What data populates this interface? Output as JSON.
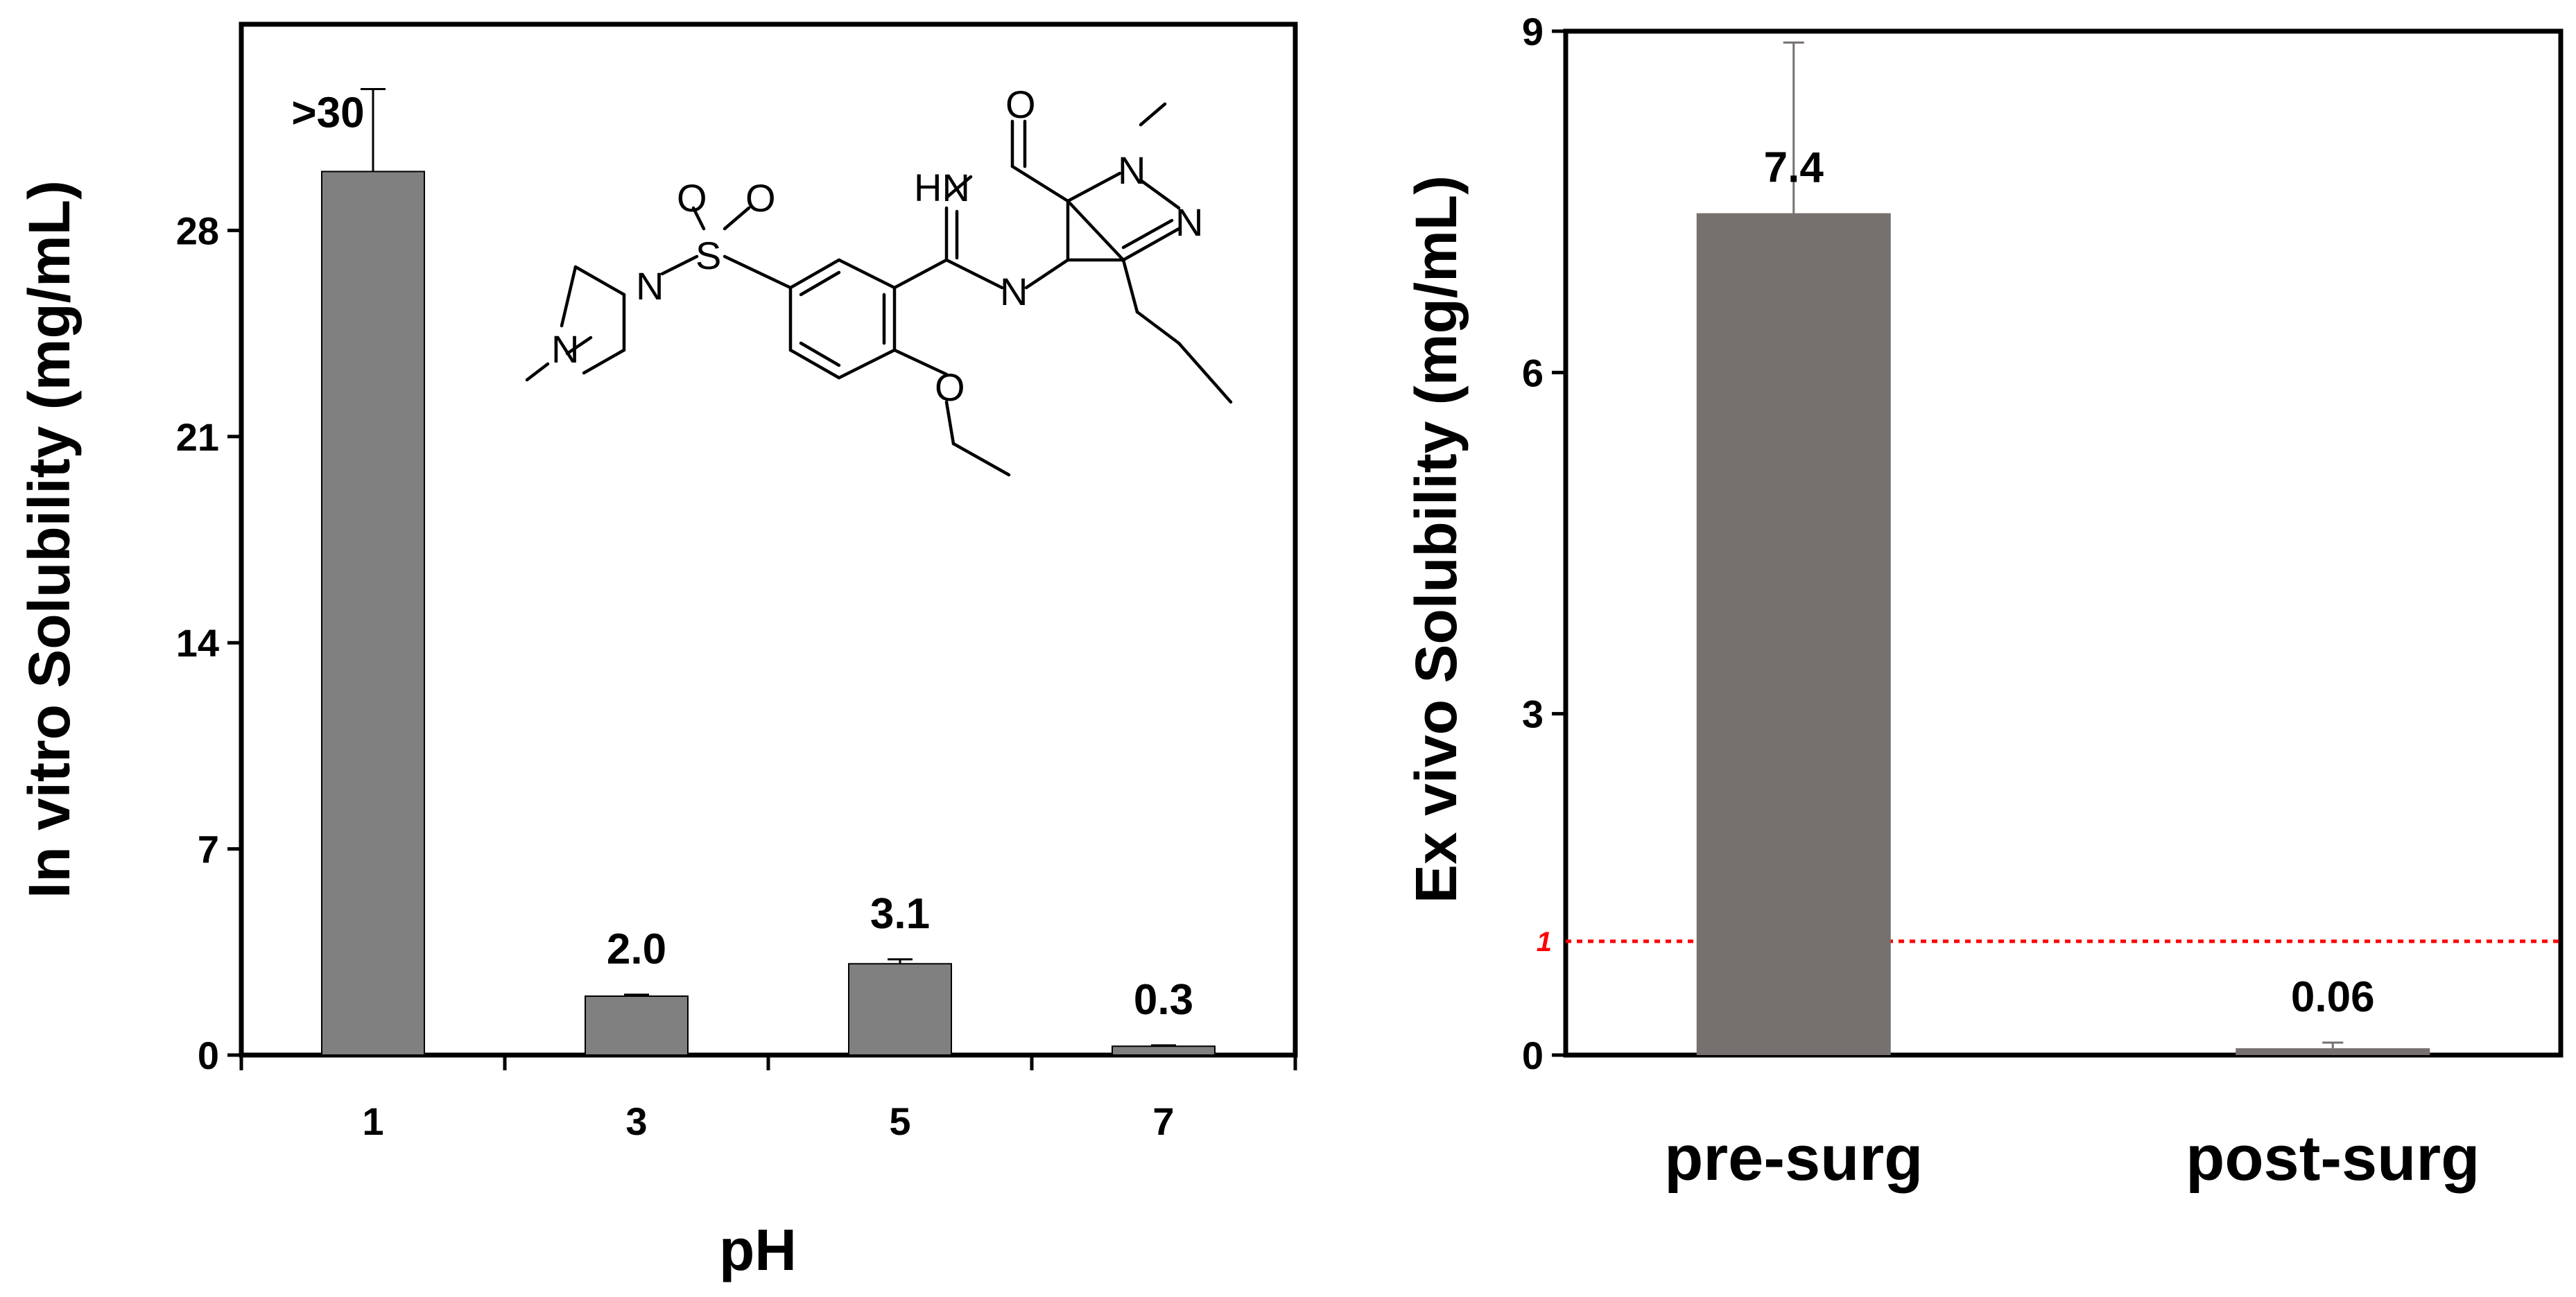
{
  "chart_data": [
    {
      "type": "bar",
      "title": "",
      "xlabel": "pH",
      "ylabel": "In vitro Solubility (mg/mL)",
      "categories": [
        "1",
        "3",
        "5",
        "7"
      ],
      "values": [
        30,
        2.0,
        3.1,
        0.3
      ],
      "error_bars": [
        2.8,
        0.05,
        0.15,
        0.03
      ],
      "data_labels": [
        ">30",
        "2.0",
        "3.1",
        "0.3"
      ],
      "ylim": [
        0,
        35
      ],
      "yticks": [
        "0",
        "7",
        "14",
        "21",
        "28"
      ],
      "ytick_values": [
        0,
        7,
        14,
        21,
        28
      ],
      "bar_color": "#808080",
      "grid": false
    },
    {
      "type": "bar",
      "title": "",
      "xlabel": "",
      "ylabel": "Ex vivo Solubility (mg/mL)",
      "categories": [
        "pre-surg",
        "post-surg"
      ],
      "values": [
        7.4,
        0.06
      ],
      "error_bars": [
        1.5,
        0.05
      ],
      "data_labels": [
        "7.4",
        "0.06"
      ],
      "ylim": [
        0,
        9
      ],
      "yticks": [
        "0",
        "3",
        "6",
        "9"
      ],
      "ytick_values": [
        0,
        3,
        6,
        9
      ],
      "reference_line": {
        "value": 1,
        "label": "1",
        "color": "#ff0000",
        "style": "dotted"
      },
      "bar_color": "#76716f",
      "grid": false
    }
  ],
  "molecule_atoms": {
    "o_top": "O",
    "hn": "HN",
    "n_methyl": "N",
    "n_pyrazole": "N",
    "n_pyrimidine": "N",
    "s": "S",
    "o_left": "O",
    "o_right": "O",
    "n_pip_right": "N",
    "n_pip_left": "N",
    "o_ether": "O"
  }
}
